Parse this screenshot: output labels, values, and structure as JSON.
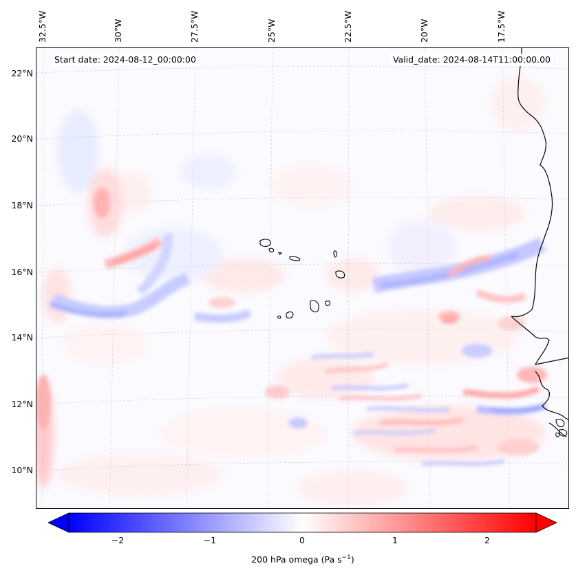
{
  "header": {
    "start_date": "Start date: 2024-08-12_00:00:00",
    "valid_date": "Valid_date: 2024-08-14T11:00:00.00"
  },
  "map": {
    "longitude_labels": [
      "32.5°W",
      "30°W",
      "27.5°W",
      "25°W",
      "22.5°W",
      "20°W",
      "17.5°W"
    ],
    "latitude_labels": [
      "22°N",
      "20°N",
      "18°N",
      "16°N",
      "14°N",
      "12°N",
      "10°N"
    ],
    "field": "200 hPa omega",
    "units": "Pa s⁻¹"
  },
  "colorbar": {
    "ticks": [
      "−2",
      "−1",
      "0",
      "1",
      "2"
    ],
    "tick_values": [
      -2,
      -1,
      0,
      1,
      2
    ],
    "range": [
      -2.6,
      2.6
    ],
    "label": "200 hPa omega (Pa s",
    "label_exponent": "−1",
    "label_close": ")",
    "colormap": "bwr",
    "neg_color": "#0000ff",
    "mid_color": "#ffffff",
    "pos_color": "#ff0000"
  }
}
